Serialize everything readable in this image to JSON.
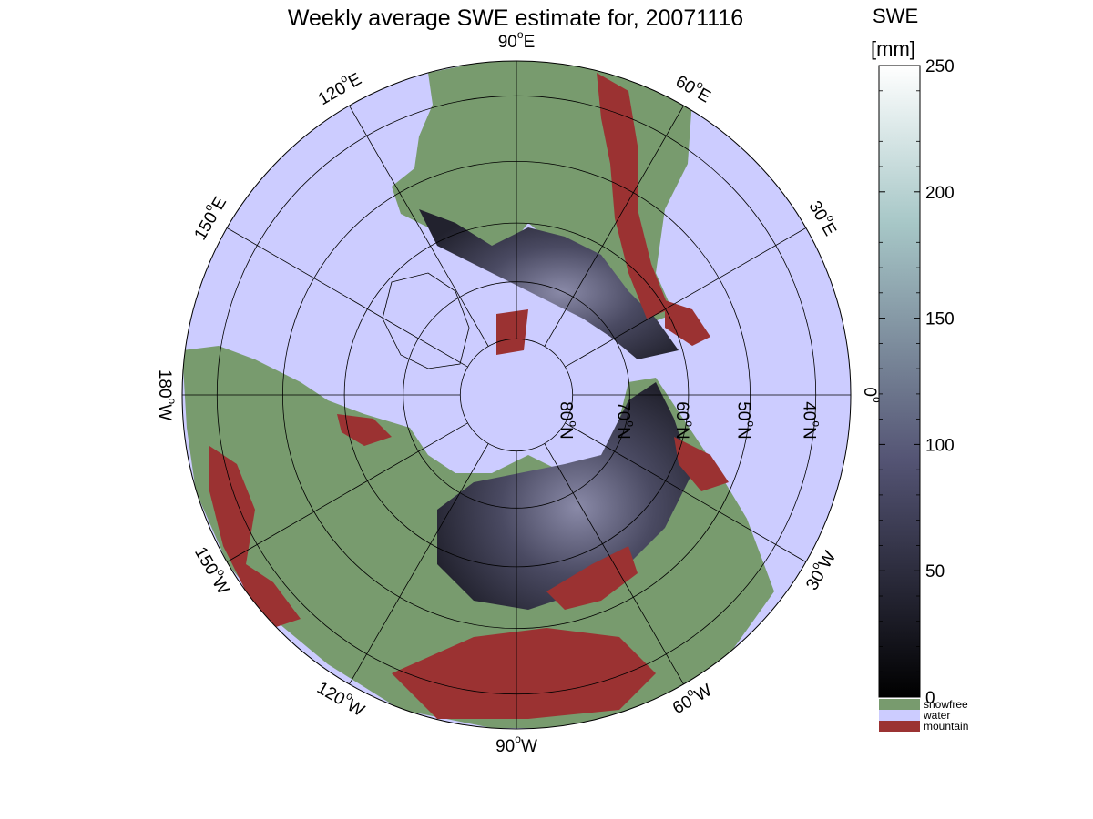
{
  "title": "Weekly average SWE estimate for, 20071116",
  "colorbar": {
    "title": "SWE",
    "unit": "[mm]",
    "min": 0,
    "max": 250,
    "ticks": [
      0,
      50,
      100,
      150,
      200,
      250
    ],
    "colormap": "bone",
    "legend": [
      {
        "label": "snowfree",
        "color": "#789b6e"
      },
      {
        "label": "water",
        "color": "#ccccff"
      },
      {
        "label": "mountain",
        "color": "#9b3232"
      }
    ]
  },
  "map": {
    "projection": "north polar stereographic",
    "center_latitude": 90,
    "ocean_color": "#ccccff",
    "land_color": "#789b6e",
    "mountain_color": "#9b3232",
    "longitude_labels": [
      {
        "label": "90°W",
        "base": "90",
        "sup": "o",
        "suffix": "W",
        "lon": -90
      },
      {
        "label": "120°W",
        "base": "120",
        "sup": "o",
        "suffix": "W",
        "lon": -120
      },
      {
        "label": "150°W",
        "base": "150",
        "sup": "o",
        "suffix": "W",
        "lon": -150
      },
      {
        "label": "180°W",
        "base": "180",
        "sup": "o",
        "suffix": "W",
        "lon": 180
      },
      {
        "label": "150°E",
        "base": "150",
        "sup": "o",
        "suffix": "E",
        "lon": 150
      },
      {
        "label": "120°E",
        "base": "120",
        "sup": "o",
        "suffix": "E",
        "lon": 120
      },
      {
        "label": "90°E",
        "base": "90",
        "sup": "o",
        "suffix": "E",
        "lon": 90
      },
      {
        "label": "60°E",
        "base": "60",
        "sup": "o",
        "suffix": "E",
        "lon": 60
      },
      {
        "label": "30°E",
        "base": "30",
        "sup": "o",
        "suffix": "E",
        "lon": 30
      },
      {
        "label": "0°",
        "base": "0",
        "sup": "o",
        "suffix": "",
        "lon": 0
      },
      {
        "label": "30°W",
        "base": "30",
        "sup": "o",
        "suffix": "W",
        "lon": -30
      },
      {
        "label": "60°W",
        "base": "60",
        "sup": "o",
        "suffix": "W",
        "lon": -60
      }
    ],
    "latitude_labels": [
      {
        "label": "80°N",
        "base": "80",
        "sup": "o",
        "suffix": "N",
        "lat": 80
      },
      {
        "label": "70°N",
        "base": "70",
        "sup": "o",
        "suffix": "N",
        "lat": 70
      },
      {
        "label": "60°N",
        "base": "60",
        "sup": "o",
        "suffix": "N",
        "lat": 60
      },
      {
        "label": "50°N",
        "base": "50",
        "sup": "o",
        "suffix": "N",
        "lat": 50
      },
      {
        "label": "40°N",
        "base": "40",
        "sup": "o",
        "suffix": "N",
        "lat": 40
      }
    ],
    "graticule_latitudes": [
      80,
      70,
      60,
      50,
      40
    ],
    "graticule_longitude_step": 30
  }
}
